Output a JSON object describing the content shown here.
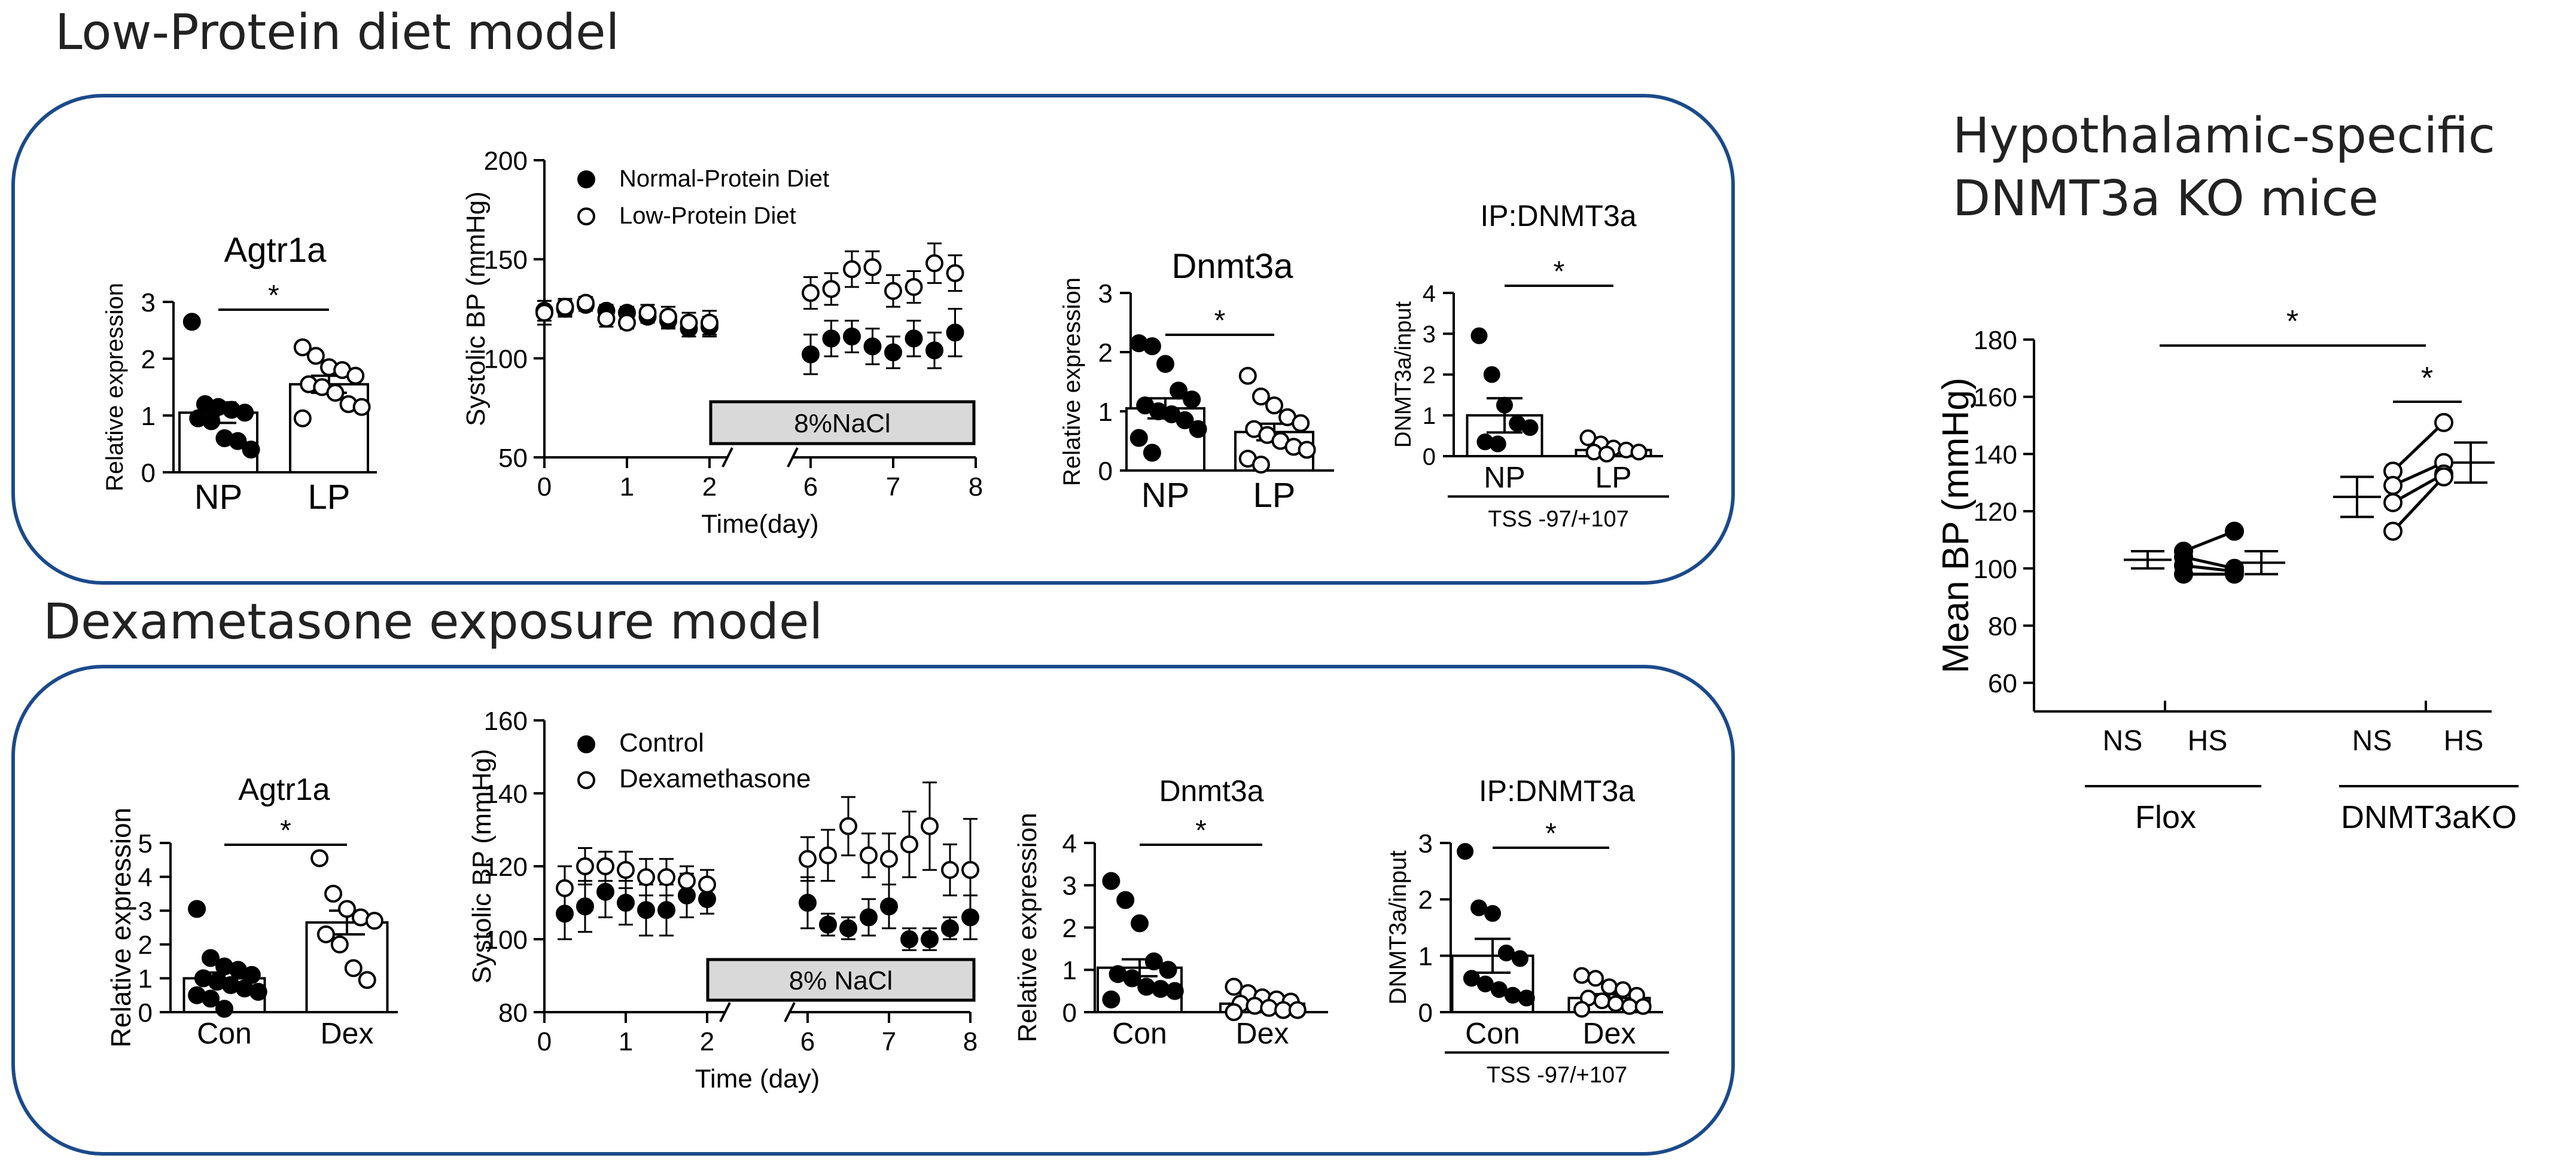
{
  "sections": {
    "lp_title": "Low-Protein diet model",
    "dex_title": "Dexametasone exposure model",
    "ko_title_line1": "Hypothalamic-specific",
    "ko_title_line2": "DNMT3a KO mice"
  },
  "chart_data": [
    {
      "id": "lp_agtr1a",
      "type": "bar",
      "title": "Agtr1a",
      "ylabel": "Relative expression",
      "ylim": [
        0,
        3
      ],
      "yticks": [
        0,
        1,
        2,
        3
      ],
      "categories": [
        "NP",
        "LP"
      ],
      "values": [
        1.05,
        1.55
      ],
      "sem": [
        0.18,
        0.15
      ],
      "significance": "*",
      "points": [
        [
          2.65,
          1.2,
          1.15,
          1.1,
          1.05,
          0.95,
          0.9,
          0.6,
          0.55,
          0.4
        ],
        [
          2.2,
          2.05,
          1.85,
          1.8,
          1.7,
          1.55,
          1.5,
          1.4,
          1.2,
          1.15,
          0.95
        ]
      ]
    },
    {
      "id": "lp_bp",
      "type": "line",
      "title": "",
      "xlabel": "Time(day)",
      "ylabel": "Systolic BP (mmHg)",
      "ylim": [
        50,
        200
      ],
      "yticks": [
        50,
        100,
        150,
        200
      ],
      "xticks": [
        0,
        1,
        2,
        6,
        7,
        8
      ],
      "bar_label": "8%NaCl",
      "series": [
        {
          "name": "Normal-Protein Diet",
          "x": [
            0,
            0.25,
            0.5,
            0.75,
            1,
            1.25,
            1.5,
            1.75,
            2,
            6,
            6.25,
            6.5,
            6.75,
            7,
            7.25,
            7.5,
            7.75
          ],
          "y": [
            124,
            125,
            127,
            124,
            123,
            121,
            119,
            115,
            116,
            102,
            110,
            111,
            106,
            103,
            110,
            104,
            113
          ],
          "err": [
            5,
            4,
            3,
            3,
            3,
            3,
            4,
            4,
            5,
            10,
            9,
            8,
            9,
            8,
            9,
            9,
            12
          ]
        },
        {
          "name": "Low-Protein Diet",
          "x": [
            0,
            0.25,
            0.5,
            0.75,
            1,
            1.25,
            1.5,
            1.75,
            2,
            6,
            6.25,
            6.5,
            6.75,
            7,
            7.25,
            7.5,
            7.75
          ],
          "y": [
            123,
            126,
            128,
            120,
            118,
            123,
            121,
            118,
            118,
            133,
            135,
            145,
            146,
            134,
            136,
            148,
            143
          ],
          "err": [
            6,
            4,
            3,
            4,
            3,
            4,
            5,
            5,
            6,
            8,
            8,
            9,
            8,
            8,
            8,
            10,
            9
          ]
        }
      ]
    },
    {
      "id": "lp_dnmt3a",
      "type": "bar",
      "title": "Dnmt3a",
      "ylabel": "Relative expression",
      "ylim": [
        0,
        3
      ],
      "yticks": [
        0,
        1,
        2,
        3
      ],
      "categories": [
        "NP",
        "LP"
      ],
      "values": [
        1.05,
        0.65
      ],
      "sem": [
        0.17,
        0.14
      ],
      "significance": "*",
      "points": [
        [
          2.15,
          2.1,
          1.8,
          1.35,
          1.2,
          1.1,
          1.0,
          0.95,
          0.85,
          0.7,
          0.55,
          0.3
        ],
        [
          1.6,
          1.25,
          1.1,
          0.9,
          0.8,
          0.7,
          0.6,
          0.5,
          0.4,
          0.35,
          0.2,
          0.1
        ]
      ]
    },
    {
      "id": "lp_chip",
      "type": "bar",
      "title": "IP:DNMT3a",
      "ylabel": "DNMT3a/input",
      "footer": "TSS -97/+107",
      "ylim": [
        0,
        4
      ],
      "yticks": [
        0,
        1,
        2,
        3,
        4
      ],
      "categories": [
        "NP",
        "LP"
      ],
      "values": [
        1.0,
        0.15
      ],
      "sem": [
        0.42,
        0.05
      ],
      "significance": "*",
      "points": [
        [
          2.95,
          2.0,
          1.25,
          0.8,
          0.7,
          0.35,
          0.3
        ],
        [
          0.45,
          0.3,
          0.2,
          0.15,
          0.1,
          0.1,
          0.05
        ]
      ]
    },
    {
      "id": "dex_agtr1a",
      "type": "bar",
      "title": "Agtr1a",
      "ylabel": "Relative expression",
      "ylim": [
        0,
        5
      ],
      "yticks": [
        0,
        1,
        2,
        3,
        4,
        5
      ],
      "categories": [
        "Con",
        "Dex"
      ],
      "values": [
        1.0,
        2.65
      ],
      "sem": [
        0.17,
        0.35
      ],
      "significance": "*",
      "points": [
        [
          3.05,
          1.6,
          1.35,
          1.25,
          1.1,
          1.0,
          0.9,
          0.8,
          0.7,
          0.6,
          0.5,
          0.4,
          0.1
        ],
        [
          4.55,
          3.5,
          3.05,
          2.8,
          2.7,
          2.3,
          2.0,
          1.3,
          0.95
        ]
      ]
    },
    {
      "id": "dex_bp",
      "type": "line",
      "title": "",
      "xlabel": "Time (day)",
      "ylabel": "Systolic BP (mmHg)",
      "ylim": [
        80,
        160
      ],
      "yticks": [
        80,
        100,
        120,
        140,
        160
      ],
      "xticks": [
        0,
        1,
        2,
        6,
        7,
        8
      ],
      "bar_label": "8% NaCl",
      "series": [
        {
          "name": "Control",
          "x": [
            0.25,
            0.5,
            0.75,
            1,
            1.25,
            1.5,
            1.75,
            2,
            6,
            6.25,
            6.5,
            6.75,
            7,
            7.25,
            7.5,
            7.75,
            8
          ],
          "y": [
            107,
            109,
            113,
            110,
            108,
            108,
            112,
            111,
            110,
            104,
            103,
            106,
            109,
            100,
            100,
            103,
            106
          ],
          "err": [
            7,
            7,
            7,
            6,
            7,
            7,
            6,
            4,
            7,
            3,
            3,
            5,
            6,
            3,
            3,
            3,
            6
          ]
        },
        {
          "name": "Dexamethasone",
          "x": [
            0.25,
            0.5,
            0.75,
            1,
            1.25,
            1.5,
            1.75,
            2,
            6,
            6.25,
            6.5,
            6.75,
            7,
            7.25,
            7.5,
            7.75,
            8
          ],
          "y": [
            114,
            120,
            120,
            119,
            117,
            117,
            116,
            115,
            122,
            123,
            131,
            123,
            122,
            126,
            131,
            119,
            119
          ],
          "err": [
            6,
            5,
            4,
            5,
            5,
            5,
            4,
            4,
            6,
            7,
            8,
            6,
            7,
            9,
            12,
            7,
            14
          ]
        }
      ]
    },
    {
      "id": "dex_dnmt3a",
      "type": "bar",
      "title": "Dnmt3a",
      "ylabel": "Relative expression",
      "ylim": [
        0,
        4
      ],
      "yticks": [
        0,
        1,
        2,
        3,
        4
      ],
      "categories": [
        "Con",
        "Dex"
      ],
      "values": [
        1.05,
        0.2
      ],
      "sem": [
        0.2,
        0.1
      ],
      "significance": "*",
      "points": [
        [
          3.1,
          2.65,
          2.1,
          1.2,
          1.0,
          0.9,
          0.8,
          0.6,
          0.55,
          0.5,
          0.3
        ],
        [
          0.6,
          0.45,
          0.35,
          0.3,
          0.25,
          0.2,
          0.15,
          0.1,
          0.05,
          0.05,
          0.0
        ]
      ]
    },
    {
      "id": "dex_chip",
      "type": "bar",
      "title": "IP:DNMT3a",
      "ylabel": "DNMT3a/input",
      "footer": "TSS -97/+107",
      "ylim": [
        0,
        3
      ],
      "yticks": [
        0,
        1,
        2,
        3
      ],
      "categories": [
        "Con",
        "Dex"
      ],
      "values": [
        1.0,
        0.25
      ],
      "sem": [
        0.3,
        0.07
      ],
      "significance": "*",
      "points": [
        [
          2.85,
          1.85,
          1.75,
          1.05,
          0.95,
          0.6,
          0.5,
          0.4,
          0.3,
          0.25
        ],
        [
          0.65,
          0.6,
          0.45,
          0.4,
          0.3,
          0.25,
          0.2,
          0.15,
          0.1,
          0.1,
          0.05
        ]
      ]
    },
    {
      "id": "ko_bp",
      "type": "scatter",
      "title": "",
      "ylabel": "Mean BP (mmHg)",
      "ylim": [
        50,
        180
      ],
      "yticks": [
        60,
        80,
        100,
        120,
        140,
        160,
        180
      ],
      "categories": [
        "NS",
        "HS",
        "NS",
        "HS"
      ],
      "groups": [
        "Flox",
        "DNMT3aKO"
      ],
      "group_summaries": [
        {
          "group": "Flox",
          "condition": "NS",
          "mean": 103,
          "sem": 3
        },
        {
          "group": "Flox",
          "condition": "HS",
          "mean": 102,
          "sem": 4
        },
        {
          "group": "DNMT3aKO",
          "condition": "NS",
          "mean": 125,
          "sem": 7
        },
        {
          "group": "DNMT3aKO",
          "condition": "HS",
          "mean": 137,
          "sem": 7
        }
      ],
      "paired": [
        {
          "group": "Flox",
          "ns": [
            106,
            104,
            101,
            98
          ],
          "hs": [
            113,
            100,
            99,
            98
          ]
        },
        {
          "group": "DNMT3aKO",
          "ns": [
            134,
            129,
            123,
            113
          ],
          "hs": [
            151,
            137,
            133,
            132
          ]
        }
      ],
      "significance": [
        {
          "label": "*",
          "between": "Flox HS vs DNMT3aKO HS"
        },
        {
          "label": "*",
          "between": "DNMT3aKO NS vs HS"
        }
      ]
    }
  ]
}
